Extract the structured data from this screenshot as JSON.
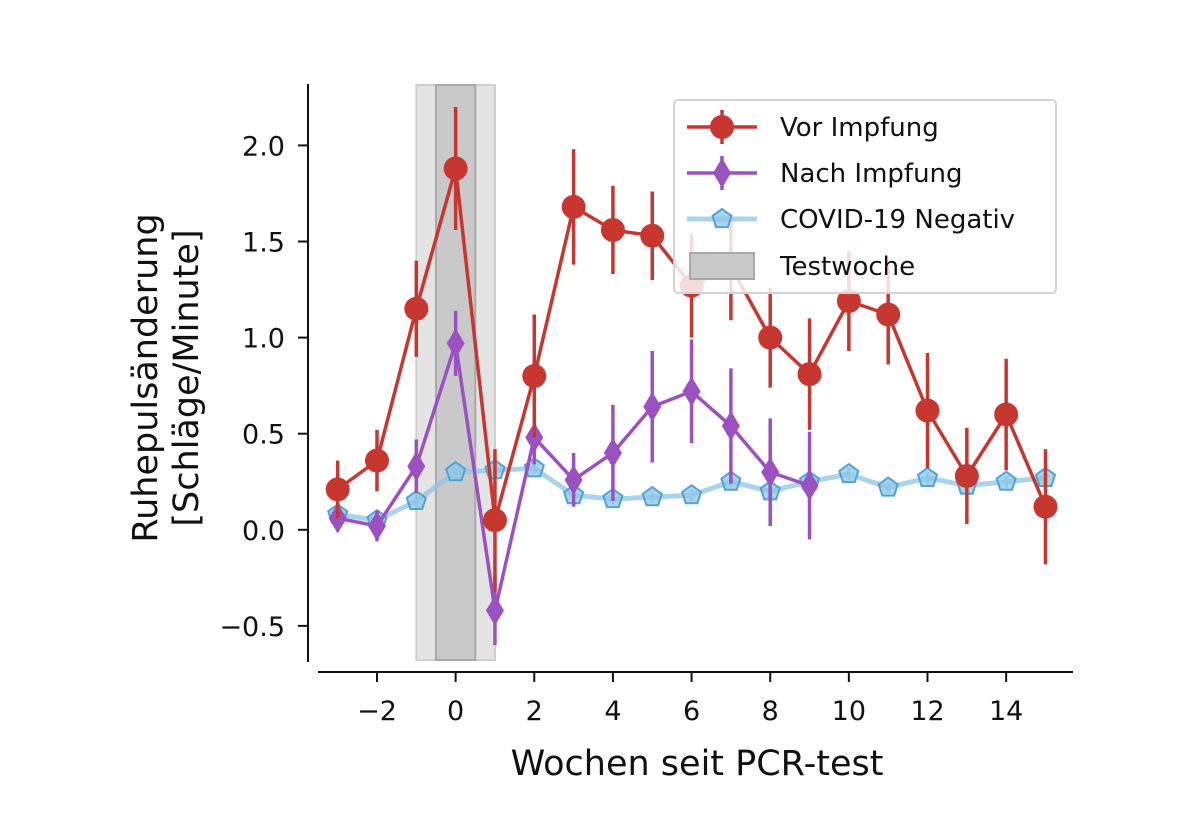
{
  "chart_data": {
    "type": "line",
    "title": "",
    "xlabel": "Wochen seit PCR-test",
    "ylabel_lines": [
      "Ruhepulsänderung",
      "[Schläge/Minute]"
    ],
    "xlim": [
      -3.5,
      15.7
    ],
    "ylim": [
      -0.74,
      2.33
    ],
    "x_ticks": [
      -2,
      0,
      2,
      4,
      6,
      8,
      10,
      12,
      14
    ],
    "x_tick_labels": [
      "−2",
      "0",
      "2",
      "4",
      "6",
      "8",
      "10",
      "12",
      "14"
    ],
    "y_ticks": [
      -0.5,
      0.0,
      0.5,
      1.0,
      1.5,
      2.0
    ],
    "y_tick_labels": [
      "−0.5",
      "0.0",
      "0.5",
      "1.0",
      "1.5",
      "2.0"
    ],
    "grid": false,
    "legend_position": "top-right",
    "test_week": {
      "label": "Testwoche",
      "inner_range": [
        -0.5,
        0.5
      ],
      "outer_range": [
        -1.0,
        1.0
      ]
    },
    "series": [
      {
        "name": "COVID-19 Negativ",
        "marker": "pentagon",
        "color": "#8ec5e6",
        "x": [
          -3,
          -2,
          -1,
          0,
          1,
          2,
          3,
          4,
          5,
          6,
          7,
          8,
          9,
          10,
          11,
          12,
          13,
          14,
          15
        ],
        "values": [
          0.08,
          0.05,
          0.15,
          0.3,
          0.31,
          0.32,
          0.18,
          0.16,
          0.17,
          0.18,
          0.25,
          0.2,
          0.25,
          0.29,
          0.22,
          0.27,
          0.23,
          0.25,
          0.27
        ],
        "err": [
          0.03,
          0.03,
          0.03,
          0.03,
          0.03,
          0.03,
          0.03,
          0.03,
          0.03,
          0.03,
          0.03,
          0.03,
          0.03,
          0.03,
          0.03,
          0.03,
          0.03,
          0.03,
          0.03
        ]
      },
      {
        "name": "Nach Impfung",
        "marker": "diamond",
        "color": "#9b51c0",
        "x": [
          -3,
          -2,
          -1,
          0,
          1,
          2,
          3,
          4,
          5,
          6,
          7,
          8,
          9
        ],
        "values": [
          0.06,
          0.02,
          0.33,
          0.97,
          -0.42,
          0.48,
          0.26,
          0.4,
          0.64,
          0.72,
          0.54,
          0.3,
          0.23
        ],
        "err": [
          0.07,
          0.08,
          0.14,
          0.17,
          0.18,
          0.14,
          0.14,
          0.25,
          0.29,
          0.27,
          0.3,
          0.28,
          0.28
        ]
      },
      {
        "name": "Vor Impfung",
        "marker": "circle",
        "color": "#c7372f",
        "x": [
          -3,
          -2,
          -1,
          0,
          1,
          2,
          3,
          4,
          5,
          6,
          7,
          8,
          9,
          10,
          11,
          12,
          13,
          14,
          15
        ],
        "values": [
          0.21,
          0.36,
          1.15,
          1.88,
          0.05,
          0.8,
          1.68,
          1.56,
          1.53,
          1.27,
          1.37,
          1.0,
          0.81,
          1.19,
          1.12,
          0.62,
          0.28,
          0.6,
          0.12
        ],
        "err": [
          0.15,
          0.16,
          0.25,
          0.32,
          0.37,
          0.32,
          0.3,
          0.23,
          0.23,
          0.27,
          0.28,
          0.26,
          0.29,
          0.26,
          0.26,
          0.3,
          0.25,
          0.29,
          0.3
        ]
      }
    ],
    "legend_order": [
      "Vor Impfung",
      "Nach Impfung",
      "COVID-19 Negativ",
      "Testwoche"
    ]
  }
}
